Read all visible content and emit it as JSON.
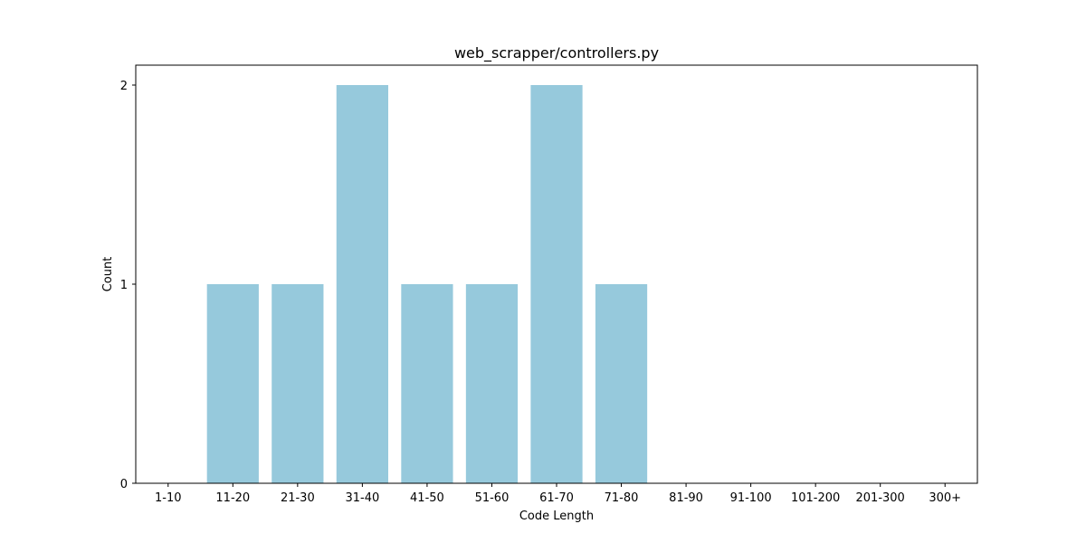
{
  "chart_data": {
    "type": "bar",
    "title": "web_scrapper/controllers.py",
    "xlabel": "Code Length",
    "ylabel": "Count",
    "categories": [
      "1-10",
      "11-20",
      "21-30",
      "31-40",
      "41-50",
      "51-60",
      "61-70",
      "71-80",
      "81-90",
      "91-100",
      "101-200",
      "201-300",
      "300+"
    ],
    "values": [
      0,
      1,
      1,
      2,
      1,
      1,
      2,
      1,
      0,
      0,
      0,
      0,
      0
    ],
    "ylim": [
      0,
      2.1
    ],
    "yticks": [
      0,
      1,
      2
    ],
    "grid": false,
    "bar_color": "#96c9dc"
  }
}
